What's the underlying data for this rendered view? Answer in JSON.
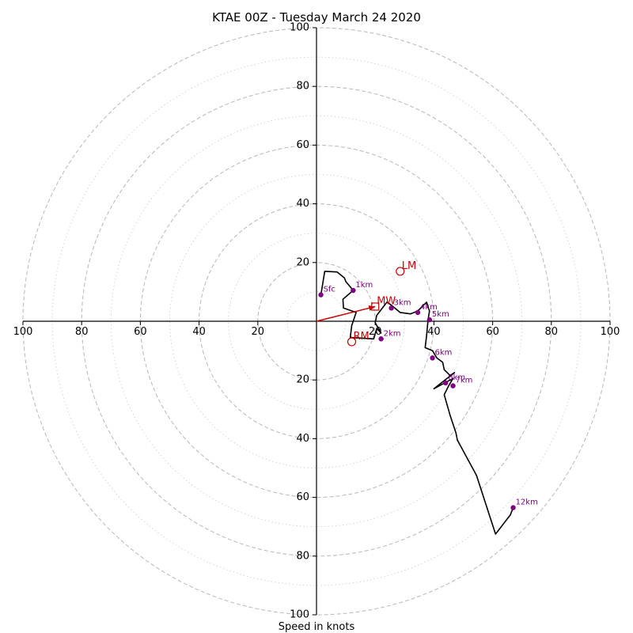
{
  "chart_data": {
    "type": "hodograph",
    "title": "KTAE 00Z - Tuesday March 24 2020",
    "xlabel": "Speed in knots",
    "rings": [
      10,
      20,
      30,
      40,
      50,
      60,
      70,
      80,
      90,
      100
    ],
    "major_rings": [
      20,
      40,
      60,
      80,
      100
    ],
    "rmax": 100,
    "tick_labels": {
      "left": [
        "100",
        "80",
        "60",
        "40",
        "20"
      ],
      "right": [
        "20",
        "40",
        "60",
        "80",
        "100"
      ],
      "top": [
        "20",
        "40",
        "60",
        "80",
        "100"
      ],
      "bottom": [
        "20",
        "40",
        "60",
        "80",
        "100"
      ]
    },
    "wind_trace_uv": [
      [
        1.5,
        9.0
      ],
      [
        2.8,
        17.0
      ],
      [
        7.0,
        16.8
      ],
      [
        9.5,
        14.8
      ],
      [
        10.0,
        13.5
      ],
      [
        12.5,
        10.5
      ],
      [
        9.0,
        7.5
      ],
      [
        9.2,
        4.5
      ],
      [
        13.5,
        3.0
      ],
      [
        12.0,
        -1.5
      ],
      [
        11.5,
        -5.5
      ],
      [
        19.5,
        -6.0
      ],
      [
        20.5,
        -2.5
      ],
      [
        22.0,
        -4.0
      ],
      [
        20.0,
        -0.5
      ],
      [
        20.5,
        2.0
      ],
      [
        24.0,
        6.5
      ],
      [
        25.5,
        5.5
      ],
      [
        28.5,
        3.0
      ],
      [
        32.0,
        2.5
      ],
      [
        34.5,
        3.5
      ],
      [
        37.5,
        6.5
      ],
      [
        38.5,
        3.5
      ],
      [
        38.0,
        0.5
      ],
      [
        37.5,
        -5.0
      ],
      [
        37.0,
        -9.0
      ],
      [
        39.5,
        -10.0
      ],
      [
        41.0,
        -12.5
      ],
      [
        43.0,
        -14.0
      ],
      [
        43.5,
        -16.5
      ],
      [
        45.5,
        -18.5
      ],
      [
        47.0,
        -17.5
      ],
      [
        40.0,
        -23.0
      ],
      [
        46.5,
        -19.5
      ],
      [
        45.0,
        -22.0
      ],
      [
        43.5,
        -25.0
      ],
      [
        45.5,
        -32.0
      ],
      [
        47.5,
        -38.0
      ],
      [
        48.0,
        -40.5
      ],
      [
        54.5,
        -52.5
      ],
      [
        61.0,
        -72.5
      ],
      [
        66.0,
        -66.0
      ],
      [
        67.0,
        -63.5
      ]
    ],
    "height_markers": [
      {
        "label": "Sfc",
        "u": 1.5,
        "v": 9.0
      },
      {
        "label": "1km",
        "u": 12.5,
        "v": 10.5
      },
      {
        "label": "2km",
        "u": 22.0,
        "v": -6.0
      },
      {
        "label": "3km",
        "u": 25.5,
        "v": 4.5
      },
      {
        "label": "4km",
        "u": 34.5,
        "v": 3.0
      },
      {
        "label": "5km",
        "u": 38.5,
        "v": 0.5
      },
      {
        "label": "6km",
        "u": 39.5,
        "v": -12.5
      },
      {
        "label": "7km",
        "u": 46.5,
        "v": -22.0
      },
      {
        "label": "8km",
        "u": 44.0,
        "v": -21.0
      },
      {
        "label": "12km",
        "u": 67.0,
        "v": -63.5
      }
    ],
    "storm_motion": {
      "LM": {
        "label": "LM",
        "u": 28.5,
        "v": 17.0
      },
      "RM": {
        "label": "RM",
        "u": 12.0,
        "v": -7.0
      },
      "MW": {
        "label": "MW",
        "u": 20.0,
        "v": 5.0
      },
      "vector_to": [
        20.0,
        5.0
      ]
    },
    "colors": {
      "trace": "#000000",
      "marker": "#800080",
      "storm": "#cc0000",
      "grid": "#bbbbbb"
    },
    "grid": true
  }
}
